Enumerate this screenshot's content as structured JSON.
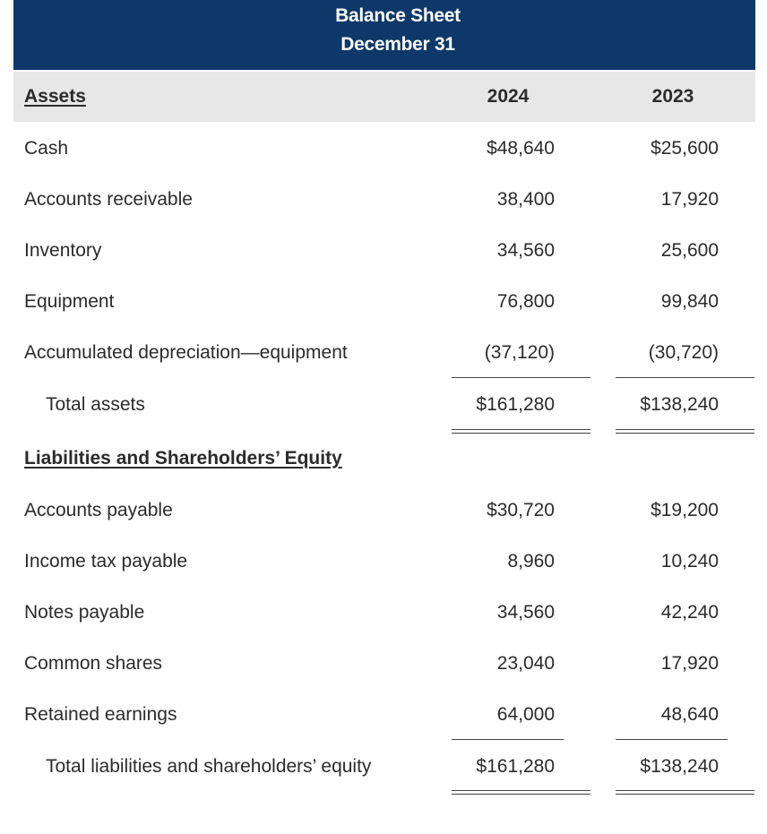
{
  "header": {
    "title": "Balance Sheet",
    "subtitle": "December 31"
  },
  "columns": {
    "section_label": "Assets",
    "year1": "2024",
    "year2": "2023"
  },
  "assets": [
    {
      "label": "Cash",
      "v1": "$48,640",
      "v2": "$25,600"
    },
    {
      "label": "Accounts receivable",
      "v1": "38,400",
      "v2": "17,920"
    },
    {
      "label": "Inventory",
      "v1": "34,560",
      "v2": "25,600"
    },
    {
      "label": "Equipment",
      "v1": "76,800",
      "v2": "99,840"
    },
    {
      "label": "Accumulated depreciation—equipment",
      "v1": "(37,120)",
      "v2": "(30,720)"
    }
  ],
  "total_assets": {
    "label": "Total assets",
    "v1": "$161,280",
    "v2": "$138,240"
  },
  "liabilities_title": "Liabilities and Shareholders’ Equity",
  "liabilities": [
    {
      "label": "Accounts payable",
      "v1": "$30,720",
      "v2": "$19,200"
    },
    {
      "label": "Income tax payable",
      "v1": "8,960",
      "v2": "10,240"
    },
    {
      "label": "Notes payable",
      "v1": "34,560",
      "v2": "42,240"
    },
    {
      "label": "Common shares",
      "v1": "23,040",
      "v2": "17,920"
    },
    {
      "label": "Retained earnings",
      "v1": "64,000",
      "v2": "48,640"
    }
  ],
  "total_liabilities": {
    "label": "Total liabilities and shareholders’ equity",
    "v1": "$161,280",
    "v2": "$138,240"
  }
}
